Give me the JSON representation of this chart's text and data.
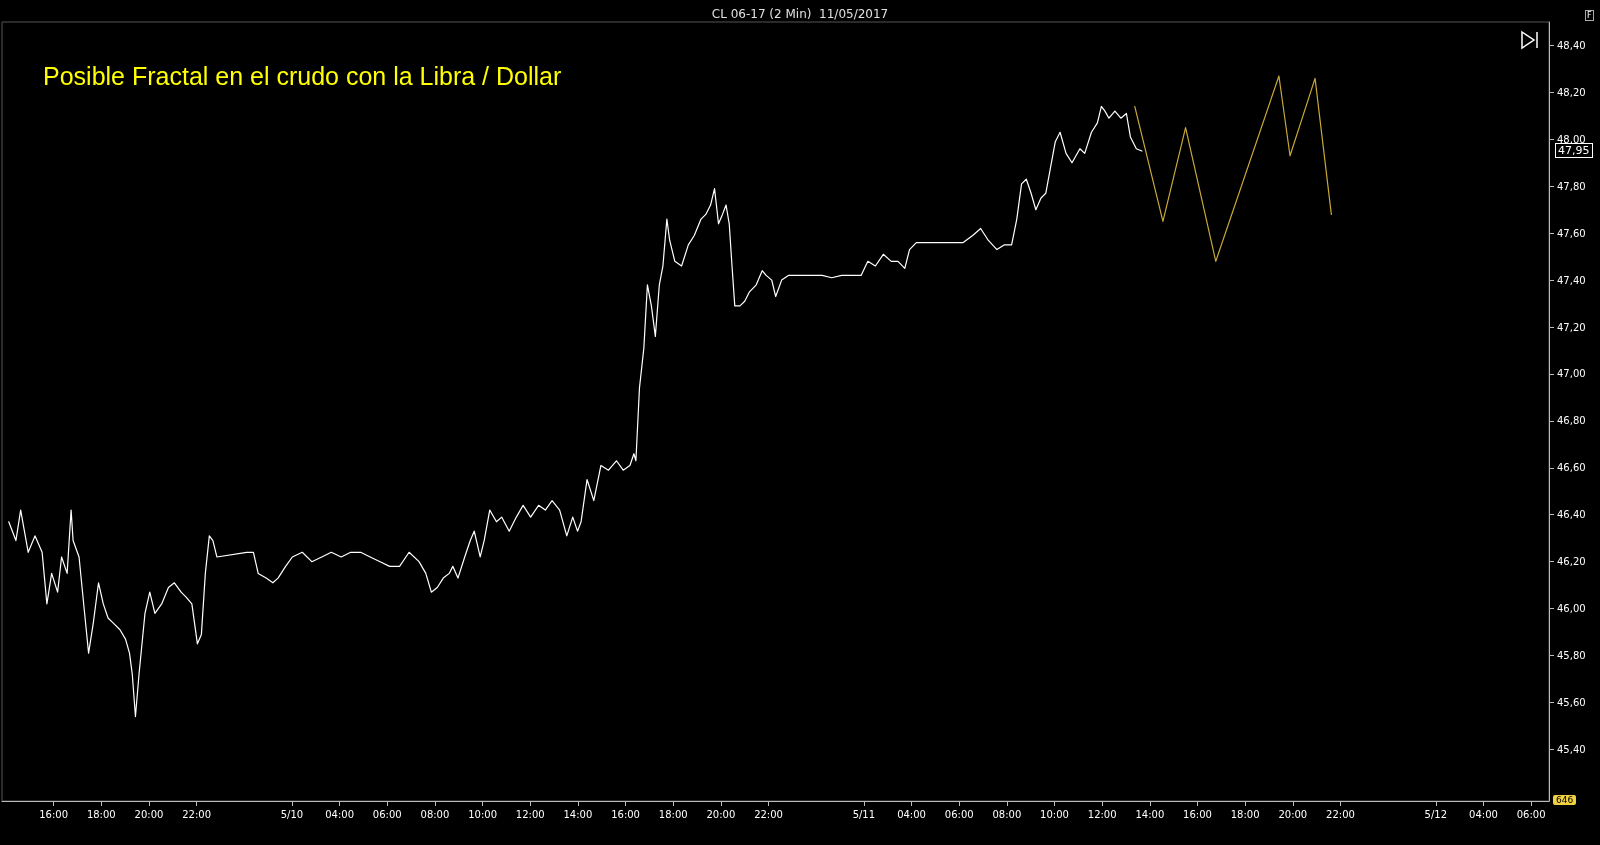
{
  "chart_data": {
    "type": "line",
    "title": "CL 06-17 (2 Min)  11/05/2017",
    "subtitle": "Posible Fractal en el crudo con la Libra / Dollar",
    "series": [
      {
        "color": "#ffffff",
        "x": [
          "2017-05-09T14:07",
          "2017-05-09T14:25",
          "2017-05-09T14:37",
          "2017-05-09T14:56",
          "2017-05-09T15:13",
          "2017-05-09T15:31",
          "2017-05-09T15:43",
          "2017-05-09T15:55",
          "2017-05-09T16:10",
          "2017-05-09T16:20",
          "2017-05-09T16:34",
          "2017-05-09T16:44",
          "2017-05-09T16:49",
          "2017-05-09T17:04",
          "2017-05-09T17:18",
          "2017-05-09T17:28",
          "2017-05-09T17:40",
          "2017-05-09T17:53",
          "2017-05-09T18:05",
          "2017-05-09T18:17",
          "2017-05-09T18:29",
          "2017-05-09T18:47",
          "2017-05-09T19:01",
          "2017-05-09T19:11",
          "2017-05-09T19:18",
          "2017-05-09T19:26",
          "2017-05-09T19:35",
          "2017-05-09T19:50",
          "2017-05-09T20:02",
          "2017-05-09T20:15",
          "2017-05-09T20:32",
          "2017-05-09T20:49",
          "2017-05-09T21:04",
          "2017-05-09T21:21",
          "2017-05-09T21:33",
          "2017-05-09T21:48",
          "2017-05-09T22:02",
          "2017-05-09T22:12",
          "2017-05-09T22:22",
          "2017-05-09T22:32",
          "2017-05-09T22:41",
          "2017-05-09T22:51",
          "2017-05-10T00:06",
          "2017-05-10T00:23",
          "2017-05-10T00:35",
          "2017-05-10T00:55",
          "2017-05-10T01:12",
          "2017-05-10T01:25",
          "2017-05-10T01:44",
          "2017-05-10T02:01",
          "2017-05-10T02:26",
          "2017-05-10T02:50",
          "2017-05-10T03:15",
          "2017-05-10T03:39",
          "2017-05-10T04:04",
          "2017-05-10T04:28",
          "2017-05-10T04:53",
          "2017-05-10T05:17",
          "2017-05-10T05:42",
          "2017-05-10T06:06",
          "2017-05-10T06:31",
          "2017-05-10T06:55",
          "2017-05-10T07:20",
          "2017-05-10T07:37",
          "2017-05-10T07:51",
          "2017-05-10T08:06",
          "2017-05-10T08:21",
          "2017-05-10T08:36",
          "2017-05-10T08:45",
          "2017-05-10T08:58",
          "2017-05-10T09:15",
          "2017-05-10T09:29",
          "2017-05-10T09:39",
          "2017-05-10T09:54",
          "2017-05-10T10:04",
          "2017-05-10T10:18",
          "2017-05-10T10:35",
          "2017-05-10T10:48",
          "2017-05-10T11:07",
          "2017-05-10T11:25",
          "2017-05-10T11:42",
          "2017-05-10T12:01",
          "2017-05-10T12:21",
          "2017-05-10T12:38",
          "2017-05-10T12:55",
          "2017-05-10T13:14",
          "2017-05-10T13:32",
          "2017-05-10T13:47",
          "2017-05-10T13:59",
          "2017-05-10T14:08",
          "2017-05-10T14:23",
          "2017-05-10T14:40",
          "2017-05-10T14:58",
          "2017-05-10T15:17",
          "2017-05-10T15:37",
          "2017-05-10T15:54",
          "2017-05-10T16:11",
          "2017-05-10T16:21",
          "2017-05-10T16:26",
          "2017-05-10T16:35",
          "2017-05-10T16:46",
          "2017-05-10T16:55",
          "2017-05-10T17:05",
          "2017-05-10T17:15",
          "2017-05-10T17:25",
          "2017-05-10T17:34",
          "2017-05-10T17:44",
          "2017-05-10T17:51",
          "2017-05-10T18:04",
          "2017-05-10T18:21",
          "2017-05-10T18:38",
          "2017-05-10T18:53",
          "2017-05-10T19:10",
          "2017-05-10T19:22",
          "2017-05-10T19:34",
          "2017-05-10T19:44",
          "2017-05-10T19:54",
          "2017-05-10T20:04",
          "2017-05-10T20:13",
          "2017-05-10T20:21",
          "2017-05-10T20:28",
          "2017-05-10T20:35",
          "2017-05-10T20:48",
          "2017-05-10T21:00",
          "2017-05-10T21:12",
          "2017-05-10T21:29",
          "2017-05-10T21:44",
          "2017-05-10T21:54",
          "2017-05-10T22:08",
          "2017-05-10T22:18",
          "2017-05-10T22:33",
          "2017-05-10T22:50",
          "2017-05-11T00:15",
          "2017-05-11T00:39",
          "2017-05-11T01:04",
          "2017-05-11T01:28",
          "2017-05-11T01:53",
          "2017-05-11T02:10",
          "2017-05-11T02:29",
          "2017-05-11T02:49",
          "2017-05-11T03:09",
          "2017-05-11T03:26",
          "2017-05-11T03:43",
          "2017-05-11T03:55",
          "2017-05-11T04:12",
          "2017-05-11T04:32",
          "2017-05-11T04:56",
          "2017-05-11T05:21",
          "2017-05-11T05:46",
          "2017-05-11T06:10",
          "2017-05-11T06:34",
          "2017-05-11T06:54",
          "2017-05-11T07:13",
          "2017-05-11T07:35",
          "2017-05-11T07:53",
          "2017-05-11T08:12",
          "2017-05-11T08:25",
          "2017-05-11T08:37",
          "2017-05-11T08:49",
          "2017-05-11T09:01",
          "2017-05-11T09:13",
          "2017-05-11T09:26",
          "2017-05-11T09:38",
          "2017-05-11T09:50",
          "2017-05-11T10:02",
          "2017-05-11T10:14",
          "2017-05-11T10:29",
          "2017-05-11T10:44",
          "2017-05-11T11:04",
          "2017-05-11T11:16",
          "2017-05-11T11:33",
          "2017-05-11T11:48",
          "2017-05-11T11:58",
          "2017-05-11T12:07",
          "2017-05-11T12:17",
          "2017-05-11T12:32",
          "2017-05-11T12:47",
          "2017-05-11T13:01",
          "2017-05-11T13:11",
          "2017-05-11T13:26",
          "2017-05-11T13:40"
        ],
        "values": [
          46.37,
          46.29,
          46.42,
          46.24,
          46.31,
          46.24,
          46.02,
          46.15,
          46.07,
          46.22,
          46.15,
          46.42,
          46.29,
          46.22,
          45.98,
          45.81,
          45.94,
          46.11,
          46.02,
          45.96,
          45.94,
          45.91,
          45.87,
          45.81,
          45.72,
          45.54,
          45.72,
          45.98,
          46.07,
          45.98,
          46.02,
          46.09,
          46.11,
          46.07,
          46.05,
          46.02,
          45.85,
          45.89,
          46.15,
          46.31,
          46.29,
          46.22,
          46.24,
          46.24,
          46.15,
          46.13,
          46.11,
          46.13,
          46.18,
          46.22,
          46.24,
          46.2,
          46.22,
          46.24,
          46.22,
          46.24,
          46.24,
          46.22,
          46.2,
          46.18,
          46.18,
          46.24,
          46.2,
          46.15,
          46.07,
          46.09,
          46.13,
          46.15,
          46.18,
          46.13,
          46.22,
          46.29,
          46.33,
          46.22,
          46.29,
          46.42,
          46.37,
          46.39,
          46.33,
          46.39,
          46.44,
          46.39,
          46.44,
          46.42,
          46.46,
          46.42,
          46.31,
          46.39,
          46.33,
          46.37,
          46.55,
          46.46,
          46.61,
          46.59,
          46.63,
          46.59,
          46.61,
          46.66,
          46.63,
          46.94,
          47.11,
          47.38,
          47.29,
          47.16,
          47.38,
          47.46,
          47.66,
          47.57,
          47.48,
          47.46,
          47.55,
          47.59,
          47.66,
          47.68,
          47.72,
          47.79,
          47.64,
          47.68,
          47.72,
          47.64,
          47.46,
          47.29,
          47.29,
          47.31,
          47.35,
          47.38,
          47.44,
          47.42,
          47.4,
          47.33,
          47.4,
          47.42,
          47.42,
          47.41,
          47.42,
          47.42,
          47.42,
          47.48,
          47.46,
          47.51,
          47.48,
          47.48,
          47.45,
          47.53,
          47.56,
          47.56,
          47.56,
          47.56,
          47.56,
          47.56,
          47.59,
          47.62,
          47.57,
          47.53,
          47.55,
          47.55,
          47.66,
          47.81,
          47.83,
          47.77,
          47.7,
          47.75,
          47.77,
          47.88,
          47.99,
          48.03,
          47.94,
          47.9,
          47.96,
          47.94,
          48.03,
          48.07,
          48.14,
          48.12,
          48.09,
          48.12,
          48.09,
          48.11,
          48.01,
          47.96,
          47.95
        ]
      },
      {
        "color": "#c8a838",
        "x": [
          "2017-05-11T13:22",
          "2017-05-11T14:33",
          "2017-05-11T15:30",
          "2017-05-11T16:46",
          "2017-05-11T19:25",
          "2017-05-11T19:53",
          "2017-05-11T20:56",
          "2017-05-11T21:37"
        ],
        "values": [
          48.14,
          47.65,
          48.05,
          47.48,
          48.27,
          47.93,
          48.26,
          47.68
        ]
      }
    ],
    "xlim": [
      "2017-05-09T13:50",
      "2017-05-12T06:45"
    ],
    "xticks": [
      {
        "value": "2017-05-09T16:00",
        "label": "16:00"
      },
      {
        "value": "2017-05-09T18:00",
        "label": "18:00"
      },
      {
        "value": "2017-05-09T20:00",
        "label": "20:00"
      },
      {
        "value": "2017-05-09T22:00",
        "label": "22:00"
      },
      {
        "value": "2017-05-10T02:00",
        "label": "5/10"
      },
      {
        "value": "2017-05-10T04:00",
        "label": "04:00"
      },
      {
        "value": "2017-05-10T06:00",
        "label": "06:00"
      },
      {
        "value": "2017-05-10T08:00",
        "label": "08:00"
      },
      {
        "value": "2017-05-10T10:00",
        "label": "10:00"
      },
      {
        "value": "2017-05-10T12:00",
        "label": "12:00"
      },
      {
        "value": "2017-05-10T14:00",
        "label": "14:00"
      },
      {
        "value": "2017-05-10T16:00",
        "label": "16:00"
      },
      {
        "value": "2017-05-10T18:00",
        "label": "18:00"
      },
      {
        "value": "2017-05-10T20:00",
        "label": "20:00"
      },
      {
        "value": "2017-05-10T22:00",
        "label": "22:00"
      },
      {
        "value": "2017-05-11T02:00",
        "label": "5/11"
      },
      {
        "value": "2017-05-11T04:00",
        "label": "04:00"
      },
      {
        "value": "2017-05-11T06:00",
        "label": "06:00"
      },
      {
        "value": "2017-05-11T08:00",
        "label": "08:00"
      },
      {
        "value": "2017-05-11T10:00",
        "label": "10:00"
      },
      {
        "value": "2017-05-11T12:00",
        "label": "12:00"
      },
      {
        "value": "2017-05-11T14:00",
        "label": "14:00"
      },
      {
        "value": "2017-05-11T16:00",
        "label": "16:00"
      },
      {
        "value": "2017-05-11T18:00",
        "label": "18:00"
      },
      {
        "value": "2017-05-11T20:00",
        "label": "20:00"
      },
      {
        "value": "2017-05-11T22:00",
        "label": "22:00"
      },
      {
        "value": "2017-05-12T02:00",
        "label": "5/12"
      },
      {
        "value": "2017-05-12T04:00",
        "label": "04:00"
      },
      {
        "value": "2017-05-12T06:00",
        "label": "06:00"
      }
    ],
    "ylim": [
      45.18,
      48.5
    ],
    "yticks": [
      {
        "value": 45.4,
        "label": "45,40"
      },
      {
        "value": 45.6,
        "label": "45,60"
      },
      {
        "value": 45.8,
        "label": "45,80"
      },
      {
        "value": 46,
        "label": "46,00"
      },
      {
        "value": 46.2,
        "label": "46,20"
      },
      {
        "value": 46.4,
        "label": "46,40"
      },
      {
        "value": 46.6,
        "label": "46,60"
      },
      {
        "value": 46.8,
        "label": "46,80"
      },
      {
        "value": 47,
        "label": "47,00"
      },
      {
        "value": 47.2,
        "label": "47,20"
      },
      {
        "value": 47.4,
        "label": "47,40"
      },
      {
        "value": 47.6,
        "label": "47,60"
      },
      {
        "value": 47.8,
        "label": "47,80"
      },
      {
        "value": 48,
        "label": "48,00"
      },
      {
        "value": 48.2,
        "label": "48,20"
      },
      {
        "value": 48.4,
        "label": "48,40"
      }
    ],
    "grid": false,
    "marker": "none",
    "line_style": "solid",
    "annotations": [
      "47,95",
      "F",
      "646"
    ]
  }
}
